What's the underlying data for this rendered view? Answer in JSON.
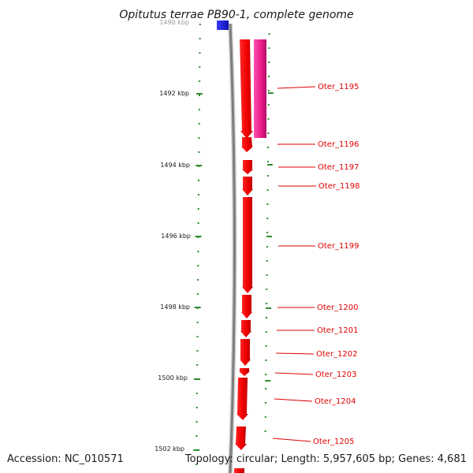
{
  "title": "Opitutus terrae PB90-1, complete genome",
  "accession": "Accession: NC_010571",
  "topology": "Topology: circular; Length: 5,957,605 bp; Genes: 4,681",
  "colors": {
    "forward_gene": "#ff0000",
    "reverse_gene": "#ee1b8c",
    "other_feature": "#1a1ad6",
    "backbone": "#8a8a8a",
    "tick": "#2e8b2e",
    "label": "#e00000"
  },
  "axis": {
    "top_partial_label": "1490 kbp",
    "tick_labels": [
      "1492 kbp",
      "1494 kbp",
      "1496 kbp",
      "1498 kbp",
      "1500 kbp",
      "1502 kbp"
    ]
  },
  "genes": [
    {
      "label": "Oter_1195"
    },
    {
      "label": "Oter_1196"
    },
    {
      "label": "Oter_1197"
    },
    {
      "label": "Oter_1198"
    },
    {
      "label": "Oter_1199"
    },
    {
      "label": "Oter_1200"
    },
    {
      "label": "Oter_1201"
    },
    {
      "label": "Oter_1202"
    },
    {
      "label": "Oter_1203"
    },
    {
      "label": "Oter_1204"
    },
    {
      "label": "Oter_1205"
    }
  ]
}
